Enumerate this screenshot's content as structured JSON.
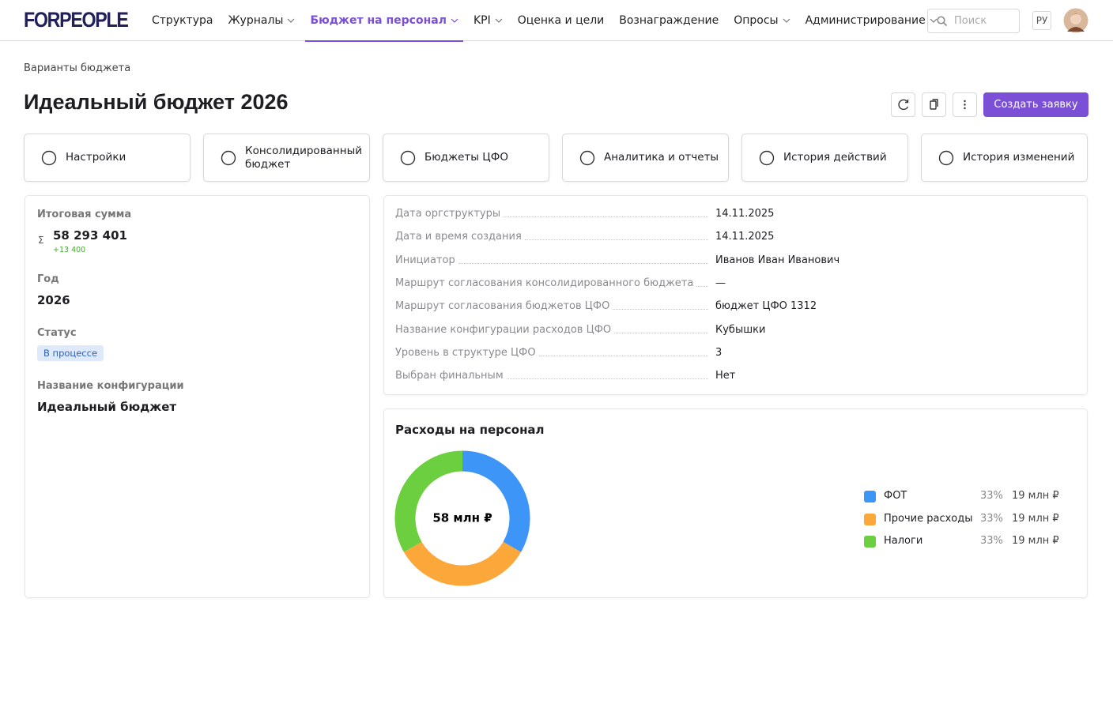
{
  "header": {
    "logo": "FORPEOPLE",
    "nav": [
      {
        "label": "Структура",
        "dropdown": false
      },
      {
        "label": "Журналы",
        "dropdown": true
      },
      {
        "label": "Бюджет на персонал",
        "dropdown": true,
        "active": true
      },
      {
        "label": "KPI",
        "dropdown": true
      },
      {
        "label": "Оценка и цели",
        "dropdown": false
      },
      {
        "label": "Вознаграждение",
        "dropdown": false
      },
      {
        "label": "Опросы",
        "dropdown": true
      },
      {
        "label": "Администрирование",
        "dropdown": true
      }
    ],
    "search_placeholder": "Поиск",
    "language": "РУ"
  },
  "breadcrumb": "Варианты бюджета",
  "title": "Идеальный бюджет 2026",
  "create_button": "Создать заявку",
  "tabs": [
    "Настройки",
    "Консолидированный бюджет",
    "Бюджеты ЦФО",
    "Аналитика и отчеты",
    "История действий",
    "История изменений"
  ],
  "summary": {
    "total_label": "Итоговая сумма",
    "sum_symbol": "Σ",
    "total": "58 293 401",
    "total_delta": "+13 400",
    "year_label": "Год",
    "year": "2026",
    "status_label": "Статус",
    "status": "В процессе",
    "config_label": "Название конфигурации",
    "config": "Идеальный бюджет"
  },
  "details": [
    {
      "label": "Дата оргструктуры",
      "value": "14.11.2025"
    },
    {
      "label": "Дата и время создания",
      "value": "14.11.2025"
    },
    {
      "label": "Инициатор",
      "value": "Иванов Иван Иванович"
    },
    {
      "label": "Маршрут согласования консолидированного бюджета",
      "value": "—"
    },
    {
      "label": "Маршрут согласования бюджетов ЦФО",
      "value": "бюджет ЦФО 1312"
    },
    {
      "label": "Название конфигурации расходов ЦФО",
      "value": "Кубышки"
    },
    {
      "label": "Уровень в структуре ЦФО",
      "value": "3"
    },
    {
      "label": "Выбран финальным",
      "value": "Нет"
    }
  ],
  "expenses_chart": {
    "type": "pie",
    "title": "Расходы на персонал",
    "center_label": "58 млн ₽",
    "series": [
      {
        "name": "ФОТ",
        "color": "#3d95f7",
        "value": 33,
        "value_label": "33%",
        "amount": "19 млн ₽"
      },
      {
        "name": "Прочие расходы",
        "color": "#fba73a",
        "value": 33,
        "value_label": "33%",
        "amount": "19 млн ₽"
      },
      {
        "name": "Налоги",
        "color": "#6ccf3f",
        "value": 33,
        "value_label": "33%",
        "amount": "19 млн ₽"
      }
    ]
  }
}
